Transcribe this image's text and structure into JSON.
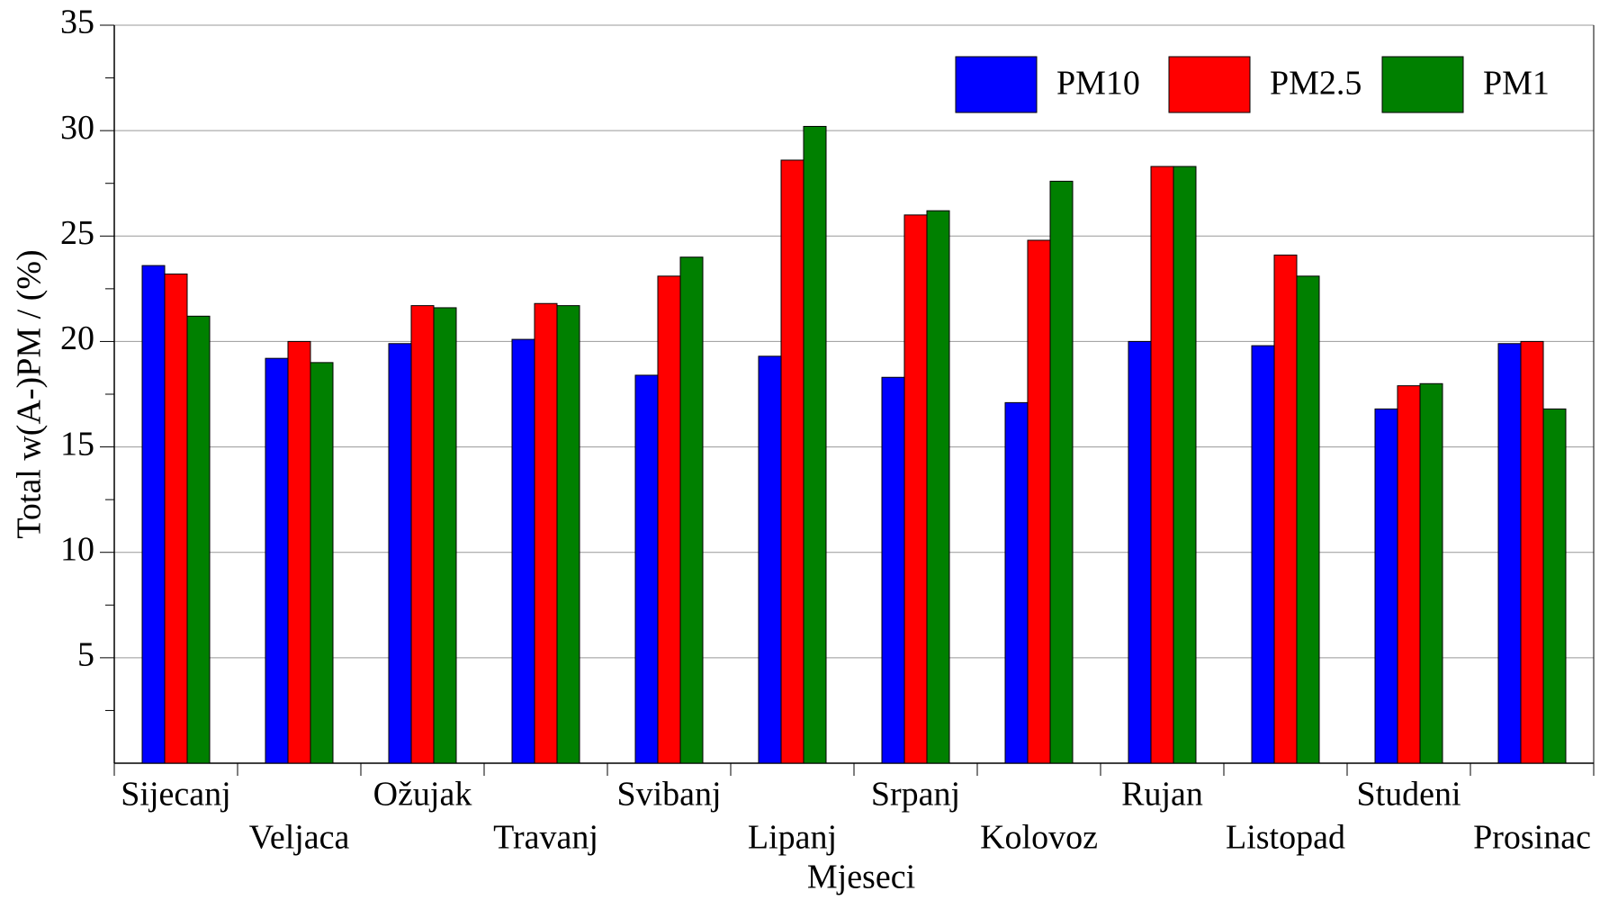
{
  "chart_data": {
    "type": "bar",
    "x_label": "Mjeseci",
    "y_label": "Total w(A-)PM / (%)",
    "categories": [
      "Sijecanj",
      "Veljaca",
      "Ožujak",
      "Travanj",
      "Svibanj",
      "Lipanj",
      "Srpanj",
      "Kolovoz",
      "Rujan",
      "Listopad",
      "Studeni",
      "Prosinac"
    ],
    "series": [
      {
        "name": "PM10",
        "color": "#0000ff",
        "values": [
          23.6,
          19.2,
          19.9,
          20.1,
          18.4,
          19.3,
          18.3,
          17.1,
          20.0,
          19.8,
          16.8,
          19.9
        ]
      },
      {
        "name": "PM2.5",
        "color": "#ff0000",
        "values": [
          23.2,
          20.0,
          21.7,
          21.8,
          23.1,
          28.6,
          26.0,
          24.8,
          28.3,
          24.1,
          17.9,
          20.0
        ]
      },
      {
        "name": "PM1",
        "color": "#008000",
        "values": [
          21.2,
          19.0,
          21.6,
          21.7,
          24.0,
          30.2,
          26.2,
          27.6,
          28.3,
          23.1,
          18.0,
          16.8
        ]
      }
    ],
    "ylim": [
      0,
      35
    ],
    "yticks": [
      5,
      10,
      15,
      20,
      25,
      30,
      35
    ],
    "grid": true,
    "legend": "top-right"
  }
}
